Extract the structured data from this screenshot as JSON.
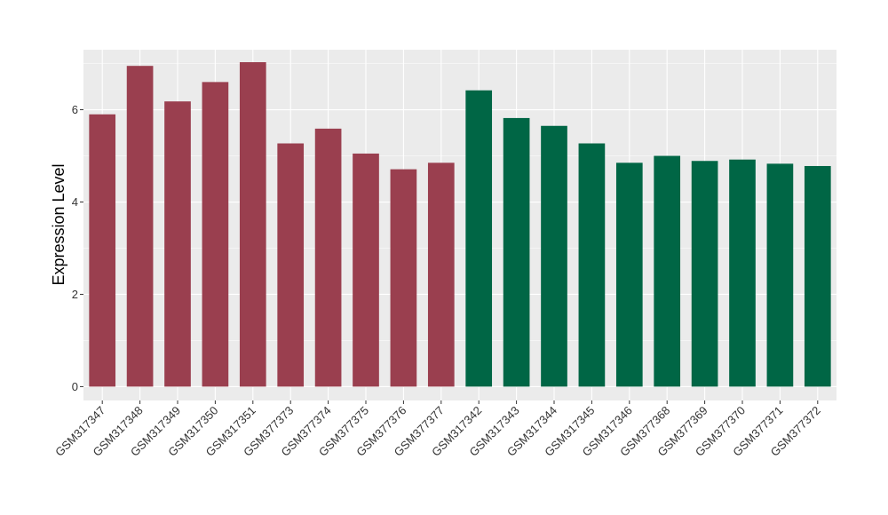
{
  "chart_data": {
    "type": "bar",
    "title": "",
    "xlabel": "",
    "ylabel": "Expression Level",
    "ylim": [
      -0.3,
      7.3
    ],
    "yticks": [
      0,
      2,
      4,
      6
    ],
    "grid": true,
    "legend": "none",
    "colors": {
      "group1": "#9a3f4f",
      "group2": "#006645",
      "panel": "#ebebeb",
      "gridline": "#ffffff"
    },
    "categories": [
      "GSM317347",
      "GSM317348",
      "GSM317349",
      "GSM317350",
      "GSM317351",
      "GSM377373",
      "GSM377374",
      "GSM377375",
      "GSM377376",
      "GSM377377",
      "GSM317342",
      "GSM317343",
      "GSM317344",
      "GSM317345",
      "GSM317346",
      "GSM377368",
      "GSM377369",
      "GSM377370",
      "GSM377371",
      "GSM377372"
    ],
    "values": [
      5.9,
      6.95,
      6.18,
      6.6,
      7.03,
      5.27,
      5.59,
      5.05,
      4.71,
      4.85,
      6.42,
      5.82,
      5.65,
      5.27,
      4.85,
      5.0,
      4.89,
      4.92,
      4.83,
      4.78
    ],
    "groups": [
      1,
      1,
      1,
      1,
      1,
      1,
      1,
      1,
      1,
      1,
      2,
      2,
      2,
      2,
      2,
      2,
      2,
      2,
      2,
      2
    ]
  }
}
